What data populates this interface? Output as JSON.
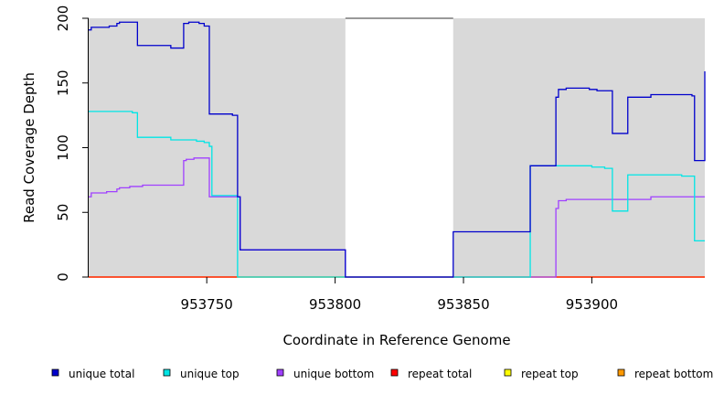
{
  "chart_data": {
    "type": "line",
    "title": "",
    "xlabel": "Coordinate in Reference Genome",
    "ylabel": "Read Coverage Depth",
    "xlim": [
      953704,
      953944
    ],
    "ylim": [
      0,
      200
    ],
    "x_ticks": [
      "953750",
      "953800",
      "953850",
      "953900"
    ],
    "y_ticks": [
      "0",
      "50",
      "100",
      "150",
      "200"
    ],
    "shaded_regions": [
      [
        953704,
        953804
      ],
      [
        953846,
        953944
      ]
    ],
    "colors": {
      "background": "#ffffff",
      "shade": "#d9d9d9",
      "unique_total": "#0000cc",
      "unique_top": "#00e5e5",
      "unique_bottom": "#a040ff",
      "repeat_total": "#ff0000",
      "repeat_top": "#ffff00",
      "repeat_bottom": "#ff9900",
      "overlap": "#2f6fe0"
    },
    "series": [
      {
        "name": "unique total",
        "color": "#0000cc",
        "steps": [
          [
            953704,
            191
          ],
          [
            953705,
            193
          ],
          [
            953712,
            194
          ],
          [
            953715,
            196
          ],
          [
            953716,
            197
          ],
          [
            953723,
            179
          ],
          [
            953736,
            177
          ],
          [
            953741,
            196
          ],
          [
            953743,
            197
          ],
          [
            953747,
            196
          ],
          [
            953749,
            194
          ],
          [
            953751,
            126
          ],
          [
            953760,
            125
          ],
          [
            953762,
            62
          ],
          [
            953763,
            21
          ],
          [
            953804,
            0
          ],
          [
            953846,
            35
          ],
          [
            953876,
            86
          ],
          [
            953886,
            139
          ],
          [
            953887,
            145
          ],
          [
            953890,
            146
          ],
          [
            953899,
            145
          ],
          [
            953902,
            144
          ],
          [
            953908,
            111
          ],
          [
            953914,
            139
          ],
          [
            953923,
            141
          ],
          [
            953939,
            140
          ],
          [
            953940,
            90
          ],
          [
            953944,
            159
          ]
        ]
      },
      {
        "name": "unique top",
        "color": "#00e5e5",
        "steps": [
          [
            953704,
            128
          ],
          [
            953721,
            127
          ],
          [
            953723,
            108
          ],
          [
            953736,
            106
          ],
          [
            953746,
            105
          ],
          [
            953749,
            104
          ],
          [
            953751,
            101
          ],
          [
            953752,
            63
          ],
          [
            953762,
            0
          ],
          [
            953876,
            86
          ],
          [
            953900,
            85
          ],
          [
            953905,
            84
          ],
          [
            953908,
            51
          ],
          [
            953914,
            79
          ],
          [
            953935,
            78
          ],
          [
            953940,
            28
          ],
          [
            953944,
            28
          ]
        ]
      },
      {
        "name": "unique bottom",
        "color": "#a040ff",
        "steps": [
          [
            953704,
            62
          ],
          [
            953705,
            65
          ],
          [
            953711,
            66
          ],
          [
            953715,
            68
          ],
          [
            953716,
            69
          ],
          [
            953720,
            70
          ],
          [
            953725,
            71
          ],
          [
            953741,
            90
          ],
          [
            953742,
            91
          ],
          [
            953745,
            92
          ],
          [
            953751,
            62
          ],
          [
            953762,
            62
          ],
          [
            953763,
            21
          ],
          [
            953804,
            0
          ],
          [
            953886,
            53
          ],
          [
            953887,
            59
          ],
          [
            953890,
            60
          ],
          [
            953923,
            62
          ],
          [
            953944,
            62
          ]
        ]
      },
      {
        "name": "repeat total",
        "color": "#ff0000",
        "steps": [
          [
            953704,
            0
          ],
          [
            953944,
            0
          ]
        ]
      },
      {
        "name": "repeat top",
        "color": "#ffff00",
        "steps": [
          [
            953704,
            0
          ],
          [
            953944,
            0
          ]
        ]
      },
      {
        "name": "repeat bottom",
        "color": "#ff9900",
        "steps": [
          [
            953704,
            0
          ],
          [
            953944,
            0
          ]
        ]
      }
    ],
    "legend": [
      "unique total",
      "unique top",
      "unique bottom",
      "repeat total",
      "repeat top",
      "repeat bottom"
    ],
    "legend_position": "bottom"
  }
}
